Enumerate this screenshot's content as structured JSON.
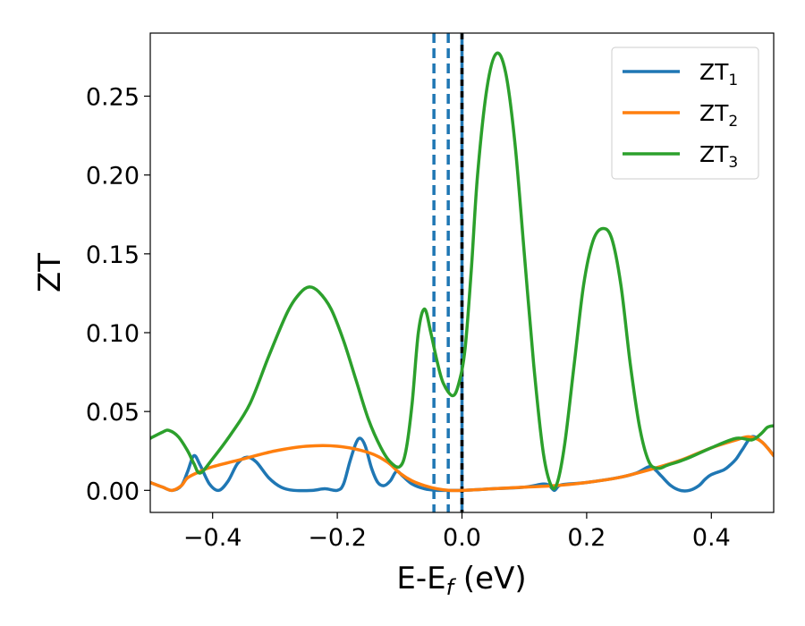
{
  "chart_data": {
    "type": "line",
    "xlabel": "E-E",
    "xlabel_sub": "f",
    "xlabel_unit": " (eV)",
    "ylabel": "ZT",
    "xlim": [
      -0.5,
      0.5
    ],
    "ylim": [
      -0.014,
      0.29
    ],
    "xticks": [
      -0.4,
      -0.2,
      0.0,
      0.2,
      0.4
    ],
    "xtick_labels": [
      "−0.4",
      "−0.2",
      "0.0",
      "0.2",
      "0.4"
    ],
    "yticks": [
      0.0,
      0.05,
      0.1,
      0.15,
      0.2,
      0.25
    ],
    "ytick_labels": [
      "0.00",
      "0.05",
      "0.10",
      "0.15",
      "0.20",
      "0.25"
    ],
    "grid": false,
    "legend_position": "top-right",
    "vlines": [
      {
        "x": -0.045,
        "style": "dashed",
        "color": "#1f77b4"
      },
      {
        "x": -0.022,
        "style": "dashed",
        "color": "#1f77b4"
      },
      {
        "x": 0.0,
        "style": "solid",
        "color": "#1f77b4"
      },
      {
        "x": 0.0,
        "style": "dashed",
        "color": "#000000"
      }
    ],
    "series": [
      {
        "name": "ZT",
        "name_sub": "1",
        "color": "#1f77b4",
        "points": [
          [
            -0.5,
            0.005
          ],
          [
            -0.48,
            0.002
          ],
          [
            -0.465,
            0.0
          ],
          [
            -0.45,
            0.003
          ],
          [
            -0.44,
            0.012
          ],
          [
            -0.43,
            0.022
          ],
          [
            -0.42,
            0.016
          ],
          [
            -0.405,
            0.004
          ],
          [
            -0.39,
            0.0
          ],
          [
            -0.375,
            0.006
          ],
          [
            -0.36,
            0.017
          ],
          [
            -0.345,
            0.021
          ],
          [
            -0.33,
            0.018
          ],
          [
            -0.31,
            0.008
          ],
          [
            -0.29,
            0.002
          ],
          [
            -0.27,
            0.0
          ],
          [
            -0.24,
            0.0
          ],
          [
            -0.22,
            0.001
          ],
          [
            -0.2,
            0.0
          ],
          [
            -0.19,
            0.004
          ],
          [
            -0.18,
            0.018
          ],
          [
            -0.17,
            0.03
          ],
          [
            -0.163,
            0.033
          ],
          [
            -0.155,
            0.028
          ],
          [
            -0.145,
            0.014
          ],
          [
            -0.135,
            0.005
          ],
          [
            -0.125,
            0.003
          ],
          [
            -0.115,
            0.006
          ],
          [
            -0.105,
            0.012
          ],
          [
            -0.095,
            0.009
          ],
          [
            -0.08,
            0.004
          ],
          [
            -0.06,
            0.001
          ],
          [
            -0.04,
            0.0
          ],
          [
            -0.02,
            0.0
          ],
          [
            0.0,
            0.0
          ],
          [
            0.05,
            0.001
          ],
          [
            0.1,
            0.002
          ],
          [
            0.13,
            0.004
          ],
          [
            0.14,
            0.003
          ],
          [
            0.148,
            0.0
          ],
          [
            0.156,
            0.003
          ],
          [
            0.17,
            0.004
          ],
          [
            0.2,
            0.005
          ],
          [
            0.25,
            0.008
          ],
          [
            0.28,
            0.011
          ],
          [
            0.3,
            0.015
          ],
          [
            0.31,
            0.013
          ],
          [
            0.32,
            0.009
          ],
          [
            0.335,
            0.003
          ],
          [
            0.35,
            0.0
          ],
          [
            0.365,
            0.0
          ],
          [
            0.38,
            0.003
          ],
          [
            0.39,
            0.007
          ],
          [
            0.4,
            0.01
          ],
          [
            0.42,
            0.013
          ],
          [
            0.43,
            0.016
          ],
          [
            0.44,
            0.02
          ],
          [
            0.45,
            0.026
          ],
          [
            0.465,
            0.034
          ],
          [
            0.48,
            0.031
          ],
          [
            0.49,
            0.027
          ],
          [
            0.5,
            0.022
          ]
        ]
      },
      {
        "name": "ZT",
        "name_sub": "2",
        "color": "#ff7f0e",
        "points": [
          [
            -0.5,
            0.005
          ],
          [
            -0.48,
            0.002
          ],
          [
            -0.465,
            0.0
          ],
          [
            -0.45,
            0.003
          ],
          [
            -0.44,
            0.008
          ],
          [
            -0.42,
            0.012
          ],
          [
            -0.4,
            0.015
          ],
          [
            -0.35,
            0.02
          ],
          [
            -0.3,
            0.025
          ],
          [
            -0.25,
            0.028
          ],
          [
            -0.2,
            0.028
          ],
          [
            -0.15,
            0.024
          ],
          [
            -0.12,
            0.018
          ],
          [
            -0.1,
            0.011
          ],
          [
            -0.08,
            0.006
          ],
          [
            -0.06,
            0.003
          ],
          [
            -0.04,
            0.001
          ],
          [
            -0.02,
            0.0
          ],
          [
            0.0,
            0.0
          ],
          [
            0.05,
            0.001
          ],
          [
            0.1,
            0.002
          ],
          [
            0.15,
            0.003
          ],
          [
            0.2,
            0.005
          ],
          [
            0.25,
            0.008
          ],
          [
            0.3,
            0.013
          ],
          [
            0.35,
            0.019
          ],
          [
            0.4,
            0.027
          ],
          [
            0.44,
            0.032
          ],
          [
            0.46,
            0.034
          ],
          [
            0.48,
            0.031
          ],
          [
            0.5,
            0.022
          ]
        ]
      },
      {
        "name": "ZT",
        "name_sub": "3",
        "color": "#2ca02c",
        "points": [
          [
            -0.5,
            0.033
          ],
          [
            -0.48,
            0.037
          ],
          [
            -0.47,
            0.038
          ],
          [
            -0.455,
            0.034
          ],
          [
            -0.44,
            0.025
          ],
          [
            -0.43,
            0.017
          ],
          [
            -0.42,
            0.011
          ],
          [
            -0.4,
            0.02
          ],
          [
            -0.37,
            0.036
          ],
          [
            -0.34,
            0.055
          ],
          [
            -0.31,
            0.085
          ],
          [
            -0.28,
            0.113
          ],
          [
            -0.26,
            0.125
          ],
          [
            -0.245,
            0.129
          ],
          [
            -0.23,
            0.126
          ],
          [
            -0.21,
            0.115
          ],
          [
            -0.19,
            0.095
          ],
          [
            -0.17,
            0.07
          ],
          [
            -0.15,
            0.045
          ],
          [
            -0.13,
            0.027
          ],
          [
            -0.115,
            0.018
          ],
          [
            -0.1,
            0.015
          ],
          [
            -0.09,
            0.025
          ],
          [
            -0.08,
            0.055
          ],
          [
            -0.07,
            0.1
          ],
          [
            -0.06,
            0.115
          ],
          [
            -0.05,
            0.1
          ],
          [
            -0.04,
            0.082
          ],
          [
            -0.03,
            0.068
          ],
          [
            -0.015,
            0.06
          ],
          [
            -0.005,
            0.068
          ],
          [
            0.005,
            0.09
          ],
          [
            0.015,
            0.14
          ],
          [
            0.025,
            0.2
          ],
          [
            0.04,
            0.255
          ],
          [
            0.055,
            0.277
          ],
          [
            0.07,
            0.265
          ],
          [
            0.085,
            0.22
          ],
          [
            0.1,
            0.15
          ],
          [
            0.115,
            0.08
          ],
          [
            0.13,
            0.025
          ],
          [
            0.143,
            0.003
          ],
          [
            0.153,
            0.005
          ],
          [
            0.165,
            0.03
          ],
          [
            0.18,
            0.08
          ],
          [
            0.195,
            0.13
          ],
          [
            0.21,
            0.158
          ],
          [
            0.225,
            0.166
          ],
          [
            0.24,
            0.16
          ],
          [
            0.255,
            0.13
          ],
          [
            0.27,
            0.08
          ],
          [
            0.285,
            0.04
          ],
          [
            0.3,
            0.018
          ],
          [
            0.315,
            0.014
          ],
          [
            0.33,
            0.016
          ],
          [
            0.36,
            0.02
          ],
          [
            0.4,
            0.027
          ],
          [
            0.44,
            0.033
          ],
          [
            0.465,
            0.032
          ],
          [
            0.48,
            0.036
          ],
          [
            0.49,
            0.04
          ],
          [
            0.5,
            0.041
          ]
        ]
      }
    ]
  }
}
